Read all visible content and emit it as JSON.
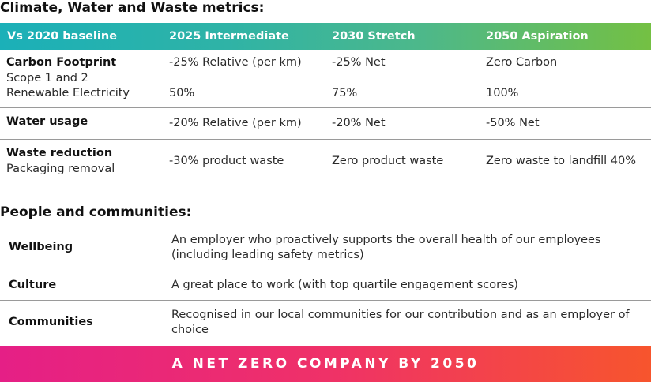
{
  "climate": {
    "title": "Climate, Water and Waste metrics:",
    "headers": [
      "Vs 2020 baseline",
      "2025 Intermediate",
      "2030 Stretch",
      "2050 Aspiration"
    ],
    "rows": {
      "carbon": {
        "label": "Carbon Footprint",
        "sub1": "Scope 1 and 2",
        "sub2": "Renewable Electricity",
        "v2025": "-25% Relative (per km)",
        "v2030": "-25% Net",
        "v2050": "Zero Carbon",
        "r2025": "50%",
        "r2030": "75%",
        "r2050": "100%"
      },
      "water": {
        "label": "Water usage",
        "v2025": "-20% Relative (per km)",
        "v2030": "-20% Net",
        "v2050": "-50% Net"
      },
      "waste": {
        "label": "Waste reduction",
        "sub": "Packaging removal",
        "v2025": "-30% product waste",
        "v2030": "Zero product waste",
        "v2050": "Zero waste to landfill 40%"
      }
    }
  },
  "people": {
    "title": "People and communities:",
    "rows": [
      {
        "label": "Wellbeing",
        "text": "An employer who proactively supports the overall health of our employees (including leading safety metrics)"
      },
      {
        "label": "Culture",
        "text": "A great place to work (with top quartile engagement scores)"
      },
      {
        "label": "Communities",
        "text": "Recognised in our local communities for our contribution and as an employer of choice"
      }
    ]
  },
  "banner": {
    "text": "A NET ZERO COMPANY BY 2050"
  },
  "colors": {
    "header_gradient": [
      "#1bb0b8",
      "#74c043"
    ],
    "banner_gradient": [
      "#e51f86",
      "#f7552d"
    ]
  }
}
